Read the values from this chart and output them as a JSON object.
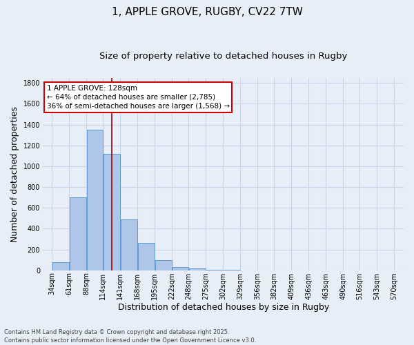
{
  "title_line1": "1, APPLE GROVE, RUGBY, CV22 7TW",
  "title_line2": "Size of property relative to detached houses in Rugby",
  "xlabel": "Distribution of detached houses by size in Rugby",
  "ylabel": "Number of detached properties",
  "bar_values": [
    75,
    700,
    1350,
    1120,
    490,
    260,
    100,
    30,
    15,
    5,
    2,
    0,
    0,
    0,
    0,
    0,
    0,
    0,
    0,
    0
  ],
  "bar_left_edges": [
    34,
    61,
    88,
    114,
    141,
    168,
    195,
    222,
    248,
    275,
    302,
    329,
    356,
    382,
    409,
    436,
    463,
    490,
    516,
    543
  ],
  "bar_widths": [
    27,
    27,
    26,
    27,
    27,
    27,
    27,
    26,
    27,
    27,
    27,
    27,
    26,
    27,
    27,
    27,
    27,
    26,
    27,
    27
  ],
  "x_tick_labels": [
    "34sqm",
    "61sqm",
    "88sqm",
    "114sqm",
    "141sqm",
    "168sqm",
    "195sqm",
    "222sqm",
    "248sqm",
    "275sqm",
    "302sqm",
    "329sqm",
    "356sqm",
    "382sqm",
    "409sqm",
    "436sqm",
    "463sqm",
    "490sqm",
    "516sqm",
    "543sqm",
    "570sqm"
  ],
  "x_tick_positions": [
    34,
    61,
    88,
    114,
    141,
    168,
    195,
    222,
    248,
    275,
    302,
    329,
    356,
    382,
    409,
    436,
    463,
    490,
    516,
    543,
    570
  ],
  "ylim": [
    0,
    1850
  ],
  "xlim": [
    20,
    585
  ],
  "bar_color": "#aec6e8",
  "bar_edge_color": "#5b9bd5",
  "background_color": "#e8eef8",
  "grid_color": "#c8d4e8",
  "vline_x": 128,
  "vline_color": "#990000",
  "annotation_text": "1 APPLE GROVE: 128sqm\n← 64% of detached houses are smaller (2,785)\n36% of semi-detached houses are larger (1,568) →",
  "annotation_box_color": "#ffffff",
  "annotation_border_color": "#cc0000",
  "footnote_line1": "Contains HM Land Registry data © Crown copyright and database right 2025.",
  "footnote_line2": "Contains public sector information licensed under the Open Government Licence v3.0.",
  "title_fontsize": 11,
  "subtitle_fontsize": 9.5,
  "tick_fontsize": 7,
  "ylabel_fontsize": 9,
  "xlabel_fontsize": 9,
  "annotation_fontsize": 7.5,
  "footnote_fontsize": 6
}
